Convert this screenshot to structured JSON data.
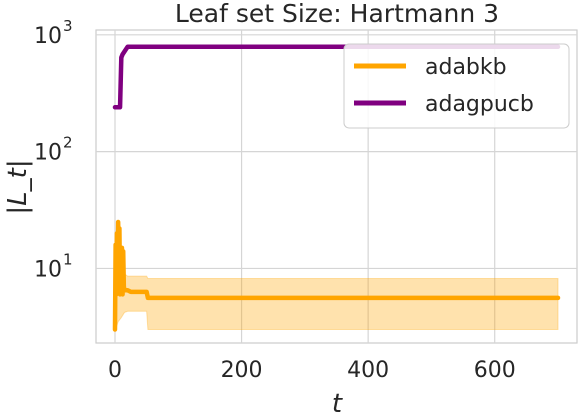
{
  "chart_data": {
    "type": "line",
    "title": "Leaf set Size: Hartmann 3",
    "xlabel": "t",
    "ylabel": "|L_t|",
    "xlim": [
      -30,
      730
    ],
    "ylim": [
      2.3,
      1100
    ],
    "yscale": "log",
    "grid": true,
    "legend_position": "top-right",
    "x_ticks": [
      {
        "value": 0,
        "label": "0"
      },
      {
        "value": 200,
        "label": "200"
      },
      {
        "value": 400,
        "label": "400"
      },
      {
        "value": 600,
        "label": "600"
      }
    ],
    "y_ticks": [
      {
        "value": 10,
        "label": "10",
        "exp": "1"
      },
      {
        "value": 100,
        "label": "10",
        "exp": "2"
      },
      {
        "value": 1000,
        "label": "10",
        "exp": "3"
      }
    ],
    "series": [
      {
        "name": "adabkb",
        "color": "#ffa500",
        "x": [
          0,
          1,
          2,
          3,
          4,
          5,
          6,
          7,
          8,
          9,
          10,
          11,
          12,
          13,
          14,
          15,
          16,
          18,
          20,
          25,
          30,
          40,
          50,
          52,
          100,
          200,
          300,
          400,
          500,
          600,
          700
        ],
        "y": [
          3,
          16,
          6,
          20,
          9,
          25,
          12,
          22,
          6,
          10,
          7,
          15,
          6,
          14,
          7,
          6.5,
          6.5,
          6.5,
          6.5,
          6.3,
          6.3,
          6.3,
          6.3,
          5.6,
          5.6,
          5.6,
          5.6,
          5.6,
          5.6,
          5.6,
          5.6
        ],
        "band": {
          "x": [
            0,
            5,
            10,
            15,
            20,
            30,
            50,
            52,
            100,
            300,
            500,
            700
          ],
          "lower": [
            2.9,
            3.5,
            3.8,
            4.2,
            4.3,
            4.3,
            4.3,
            3.0,
            3.0,
            3.0,
            3.0,
            3.0
          ],
          "upper": [
            9,
            22,
            14,
            9,
            8.6,
            8.6,
            8.6,
            8.2,
            8.2,
            8.2,
            8.2,
            8.2
          ]
        }
      },
      {
        "name": "adagpucb",
        "color": "#800080",
        "x": [
          0,
          8,
          10,
          12,
          15,
          20,
          25,
          30,
          700
        ],
        "y": [
          240,
          240,
          640,
          680,
          720,
          790,
          790,
          790,
          790
        ]
      }
    ]
  }
}
